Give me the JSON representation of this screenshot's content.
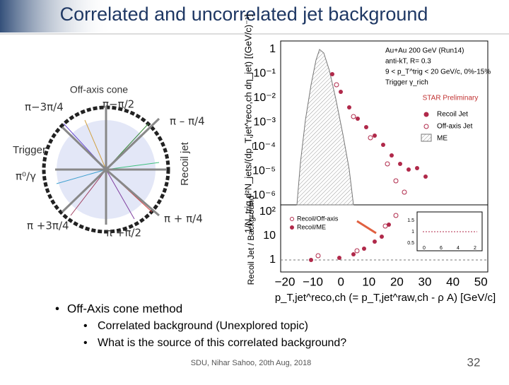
{
  "header": {
    "title": "Correlated and uncorrelated jet background"
  },
  "diagram": {
    "off_axis": "Off-axis cone",
    "a1": "π−3π/4",
    "a2": "π−π/2",
    "a3": "π – π/4",
    "trigger": "Trigger",
    "recoil": "Recoil jet",
    "pi0": "π⁰/γ",
    "a4": "π +3π/4",
    "a5": "π +π/2",
    "a6": "π + π/4"
  },
  "plot": {
    "top_yticks": [
      "1",
      "10⁻¹",
      "10⁻²",
      "10⁻³",
      "10⁻⁴",
      "10⁻⁵",
      "10⁻⁶"
    ],
    "bottom_yticks": [
      "10²",
      "10",
      "1"
    ],
    "xticks": [
      "−20",
      "−10",
      "0",
      "10",
      "20",
      "30",
      "40",
      "50"
    ],
    "ylabel": "1/N_trig d²N_jets/(dp_T,jet^reco,ch dη_jet) [(GeV/c)⁻¹]",
    "ylabel_bottom": "Recoil Jet / Background",
    "xlabel": "p_T,jet^reco,ch (= p_T,jet^raw,ch - ρ A) [GeV/c]",
    "info": [
      "Au+Au 200 GeV (Run14)",
      "anti-kT, R= 0.3",
      "9 < p_T^trig < 20 GeV/c, 0%-15%",
      "Trigger γ_rich"
    ],
    "preliminary": "STAR Preliminary",
    "legend": [
      "Recoil Jet",
      "Off-axis Jet",
      "ME"
    ],
    "legend_bottom": [
      "Recoil/Off-axis",
      "Recoil/ME"
    ],
    "inset_yticks": [
      "1.5",
      "1",
      "0.5"
    ],
    "inset_xticks": [
      "0",
      "6",
      "4",
      "2"
    ]
  },
  "bullets": {
    "main": "Off-Axis cone method",
    "sub": [
      "Correlated background (Unexplored topic)",
      "What is the source of this correlated background?"
    ]
  },
  "footer": {
    "credit": "SDU, Nihar Sahoo, 20th Aug, 2018",
    "page": "32"
  }
}
